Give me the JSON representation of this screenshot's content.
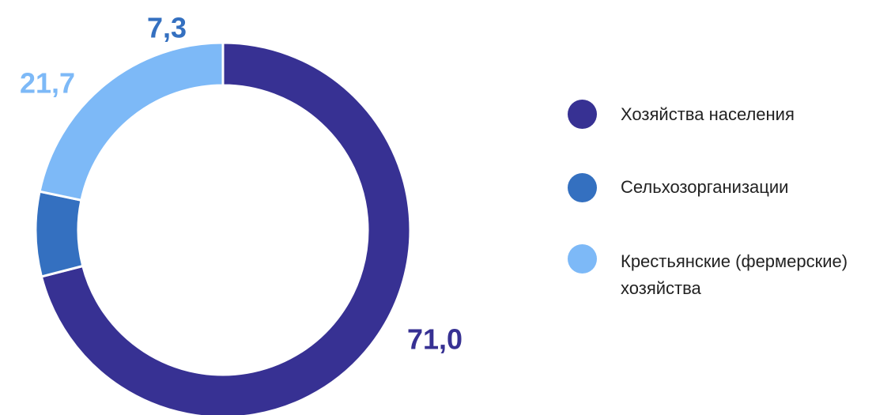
{
  "chart_data": {
    "type": "pie",
    "donut": true,
    "title": "",
    "categories": [
      "Хозяйства населения",
      "Сельхозорганизации",
      "Крестьянские (фермерские) хозяйства"
    ],
    "values": [
      71.0,
      7.3,
      21.7
    ],
    "data_labels": [
      "71,0",
      "7,3",
      "21,7"
    ],
    "colors": [
      "#373193",
      "#3470C0",
      "#7DB9F7"
    ],
    "legend_position": "right",
    "legend": [
      {
        "label": "Хозяйства населения",
        "color": "#373193"
      },
      {
        "label": "Сельхозорганизации",
        "color": "#3470C0"
      },
      {
        "label": "Крестьянские (фермерские)\nхозяйства",
        "color": "#7DB9F7"
      }
    ]
  }
}
